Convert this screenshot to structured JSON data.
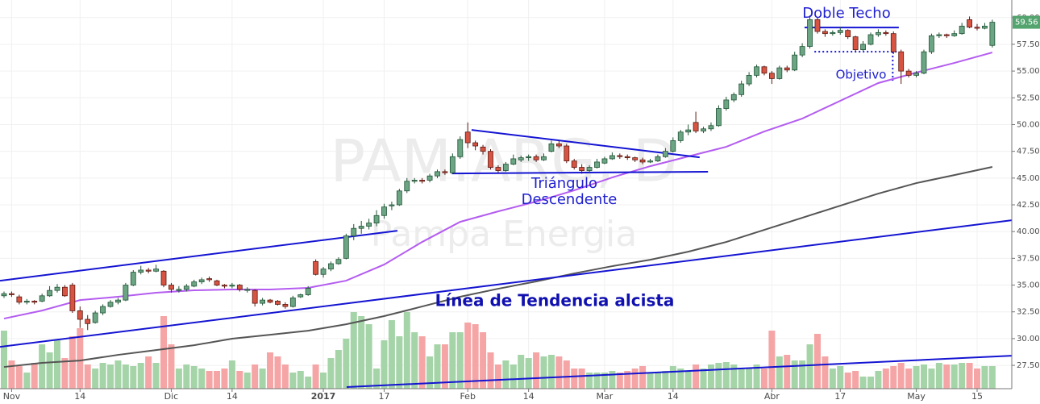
{
  "chart_data": {
    "type": "candlestick",
    "watermark": [
      "PAM:ARG, D",
      "Pampa Energia"
    ],
    "annotations": [
      "Doble Techo",
      "Objetivo",
      "Triángulo",
      "Descendente",
      "Línea de Tendencia alcista"
    ],
    "up_color": "#6ba583",
    "down_color": "#d75442",
    "grid": true,
    "xlim": [
      -0.53,
      132.56
    ],
    "ylim": [
      25.32,
      61.64
    ],
    "xticks": [
      {
        "value": 1,
        "label": "Nov"
      },
      {
        "value": 10,
        "label": "14"
      },
      {
        "value": 22,
        "label": "Dic"
      },
      {
        "value": 30,
        "label": "14"
      },
      {
        "value": 42,
        "label": "2017"
      },
      {
        "value": 50,
        "label": "17"
      },
      {
        "value": 61,
        "label": "Feb"
      },
      {
        "value": 69,
        "label": "14"
      },
      {
        "value": 79,
        "label": "Mar"
      },
      {
        "value": 88,
        "label": "14"
      },
      {
        "value": 101,
        "label": "Abr"
      },
      {
        "value": 110,
        "label": "17"
      },
      {
        "value": 120,
        "label": "May"
      },
      {
        "value": 128,
        "label": "15"
      }
    ],
    "yticks": [
      {
        "value": 27.5,
        "label": "27.50"
      },
      {
        "value": 30,
        "label": "30.00"
      },
      {
        "value": 32.5,
        "label": "32.50"
      },
      {
        "value": 35,
        "label": "35.00"
      },
      {
        "value": 37.5,
        "label": "37.50"
      },
      {
        "value": 40,
        "label": "40.00"
      },
      {
        "value": 42.5,
        "label": "42.50"
      },
      {
        "value": 45,
        "label": "45.00"
      },
      {
        "value": 47.5,
        "label": "47.50"
      },
      {
        "value": 50,
        "label": "50.00"
      },
      {
        "value": 52.5,
        "label": "52.50"
      },
      {
        "value": 55,
        "label": "55.00"
      },
      {
        "value": 57.5,
        "label": "57.50"
      },
      {
        "value": 60,
        "label": "60.00"
      }
    ],
    "last_price": {
      "value": 59.56,
      "color": "#53a46e"
    },
    "candles": [
      [
        34.0,
        34.4,
        33.8,
        34.2
      ],
      [
        34.2,
        34.4,
        33.9,
        34.1
      ],
      [
        33.9,
        34.1,
        33.2,
        33.4
      ],
      [
        33.4,
        33.7,
        33.2,
        33.5
      ],
      [
        33.5,
        33.6,
        33.2,
        33.4
      ],
      [
        33.5,
        34.2,
        33.4,
        34.0
      ],
      [
        34.0,
        34.9,
        33.9,
        34.5
      ],
      [
        34.5,
        35.1,
        34.3,
        34.8
      ],
      [
        34.8,
        35.0,
        33.9,
        34.0
      ],
      [
        35.0,
        35.2,
        32.4,
        32.6
      ],
      [
        32.6,
        33.0,
        31.0,
        31.8
      ],
      [
        31.8,
        32.2,
        30.8,
        31.4
      ],
      [
        31.5,
        32.6,
        31.4,
        32.4
      ],
      [
        32.4,
        33.2,
        32.2,
        33.0
      ],
      [
        33.0,
        33.6,
        32.9,
        33.4
      ],
      [
        33.4,
        33.8,
        33.2,
        33.6
      ],
      [
        33.6,
        35.2,
        33.5,
        35.0
      ],
      [
        35.0,
        36.4,
        34.9,
        36.2
      ],
      [
        36.2,
        36.8,
        36.0,
        36.4
      ],
      [
        36.4,
        36.6,
        36.1,
        36.3
      ],
      [
        36.3,
        36.9,
        36.2,
        36.5
      ],
      [
        36.3,
        36.4,
        34.8,
        35.0
      ],
      [
        35.0,
        35.2,
        34.3,
        34.6
      ],
      [
        34.5,
        34.9,
        34.3,
        34.6
      ],
      [
        34.6,
        35.1,
        34.4,
        34.9
      ],
      [
        34.9,
        35.5,
        34.8,
        35.3
      ],
      [
        35.3,
        35.7,
        35.1,
        35.5
      ],
      [
        35.6,
        35.8,
        35.3,
        35.5
      ],
      [
        35.4,
        35.5,
        34.9,
        35.0
      ],
      [
        35.0,
        35.1,
        34.7,
        34.9
      ],
      [
        34.9,
        35.2,
        34.7,
        35.0
      ],
      [
        35.0,
        35.1,
        34.4,
        34.6
      ],
      [
        34.5,
        34.8,
        34.3,
        34.6
      ],
      [
        34.5,
        34.6,
        33.0,
        33.3
      ],
      [
        33.3,
        33.8,
        33.1,
        33.6
      ],
      [
        33.6,
        33.7,
        33.3,
        33.4
      ],
      [
        33.5,
        33.6,
        33.1,
        33.2
      ],
      [
        33.2,
        33.4,
        32.8,
        33.0
      ],
      [
        33.0,
        34.0,
        32.9,
        33.8
      ],
      [
        33.9,
        34.2,
        33.8,
        34.1
      ],
      [
        34.1,
        34.9,
        34.0,
        34.7
      ],
      [
        37.2,
        37.4,
        35.9,
        36.0
      ],
      [
        36.0,
        36.7,
        35.7,
        36.5
      ],
      [
        36.5,
        37.2,
        36.3,
        37.0
      ],
      [
        37.0,
        37.6,
        36.9,
        37.4
      ],
      [
        37.5,
        39.8,
        37.4,
        39.6
      ],
      [
        39.6,
        40.7,
        39.2,
        40.3
      ],
      [
        40.3,
        41.0,
        39.8,
        40.5
      ],
      [
        40.5,
        41.2,
        40.2,
        40.8
      ],
      [
        40.8,
        42.0,
        40.5,
        41.5
      ],
      [
        41.5,
        42.6,
        41.2,
        42.3
      ],
      [
        42.4,
        42.8,
        42.0,
        42.5
      ],
      [
        42.5,
        44.0,
        42.4,
        43.8
      ],
      [
        43.8,
        45.0,
        43.6,
        44.7
      ],
      [
        44.7,
        45.0,
        44.5,
        44.8
      ],
      [
        44.8,
        45.0,
        44.5,
        44.7
      ],
      [
        44.8,
        45.4,
        44.6,
        45.2
      ],
      [
        45.2,
        45.8,
        45.0,
        45.6
      ],
      [
        45.6,
        45.8,
        45.3,
        45.5
      ],
      [
        45.5,
        47.3,
        45.4,
        47.0
      ],
      [
        47.0,
        48.9,
        46.8,
        48.6
      ],
      [
        49.3,
        50.2,
        47.8,
        48.3
      ],
      [
        48.3,
        48.5,
        47.6,
        48.0
      ],
      [
        47.9,
        48.1,
        47.2,
        47.5
      ],
      [
        47.5,
        47.7,
        45.8,
        46.0
      ],
      [
        46.0,
        46.2,
        45.5,
        45.7
      ],
      [
        45.7,
        46.5,
        45.6,
        46.3
      ],
      [
        46.3,
        47.2,
        46.2,
        46.8
      ],
      [
        46.7,
        47.1,
        46.5,
        46.9
      ],
      [
        46.9,
        47.2,
        46.6,
        47.0
      ],
      [
        47.0,
        47.2,
        46.5,
        46.7
      ],
      [
        46.7,
        47.3,
        46.6,
        47.0
      ],
      [
        47.5,
        48.5,
        47.4,
        48.2
      ],
      [
        48.2,
        48.5,
        47.8,
        48.0
      ],
      [
        48.0,
        48.2,
        46.4,
        46.6
      ],
      [
        46.6,
        46.8,
        45.8,
        46.0
      ],
      [
        46.0,
        46.3,
        45.4,
        45.7
      ],
      [
        45.7,
        46.2,
        45.5,
        46.0
      ],
      [
        46.0,
        46.8,
        45.9,
        46.5
      ],
      [
        46.4,
        47.0,
        46.3,
        46.8
      ],
      [
        46.8,
        47.4,
        46.7,
        47.1
      ],
      [
        47.1,
        47.3,
        46.8,
        47.0
      ],
      [
        47.0,
        47.2,
        46.7,
        46.9
      ],
      [
        46.9,
        47.0,
        46.5,
        46.7
      ],
      [
        46.7,
        46.9,
        46.3,
        46.5
      ],
      [
        46.5,
        46.8,
        46.4,
        46.6
      ],
      [
        46.6,
        47.2,
        46.5,
        47.0
      ],
      [
        47.0,
        47.8,
        46.9,
        47.5
      ],
      [
        47.5,
        48.8,
        47.4,
        48.5
      ],
      [
        48.5,
        49.5,
        48.3,
        49.3
      ],
      [
        49.3,
        50.0,
        49.0,
        49.5
      ],
      [
        50.2,
        51.2,
        49.2,
        49.4
      ],
      [
        49.4,
        49.8,
        49.2,
        49.6
      ],
      [
        49.6,
        50.2,
        49.4,
        49.9
      ],
      [
        49.9,
        51.8,
        49.8,
        51.5
      ],
      [
        51.5,
        52.6,
        51.3,
        52.3
      ],
      [
        52.3,
        53.0,
        52.1,
        52.8
      ],
      [
        52.8,
        54.1,
        52.6,
        53.8
      ],
      [
        53.8,
        54.9,
        53.6,
        54.6
      ],
      [
        54.6,
        55.6,
        54.4,
        55.4
      ],
      [
        55.4,
        55.5,
        54.6,
        54.8
      ],
      [
        54.8,
        55.0,
        53.8,
        54.3
      ],
      [
        54.3,
        55.5,
        54.2,
        55.3
      ],
      [
        55.3,
        55.5,
        54.9,
        55.1
      ],
      [
        55.1,
        56.8,
        55.0,
        56.5
      ],
      [
        56.5,
        57.6,
        56.3,
        57.3
      ],
      [
        57.3,
        60.2,
        57.1,
        59.8
      ],
      [
        59.8,
        60.0,
        58.5,
        58.7
      ],
      [
        58.7,
        58.9,
        58.2,
        58.5
      ],
      [
        58.5,
        58.8,
        58.3,
        58.6
      ],
      [
        58.6,
        59.1,
        58.4,
        58.8
      ],
      [
        58.8,
        58.9,
        58.0,
        58.2
      ],
      [
        58.2,
        58.3,
        56.8,
        57.0
      ],
      [
        57.0,
        57.8,
        56.9,
        57.5
      ],
      [
        57.5,
        58.6,
        57.4,
        58.4
      ],
      [
        58.4,
        58.9,
        58.2,
        58.6
      ],
      [
        58.6,
        58.8,
        58.3,
        58.5
      ],
      [
        58.5,
        58.7,
        56.6,
        56.8
      ],
      [
        56.8,
        57.0,
        53.8,
        55.0
      ],
      [
        55.0,
        55.2,
        54.4,
        54.6
      ],
      [
        54.6,
        55.0,
        54.4,
        54.8
      ],
      [
        54.8,
        57.0,
        54.7,
        56.8
      ],
      [
        56.8,
        58.5,
        56.6,
        58.3
      ],
      [
        58.3,
        58.6,
        58.1,
        58.4
      ],
      [
        58.4,
        58.5,
        58.1,
        58.3
      ],
      [
        58.3,
        58.8,
        58.2,
        58.5
      ],
      [
        58.5,
        59.5,
        58.4,
        59.2
      ],
      [
        59.8,
        60.1,
        59.0,
        59.1
      ],
      [
        59.1,
        59.4,
        58.8,
        59.0
      ],
      [
        59.0,
        59.5,
        58.9,
        59.2
      ],
      [
        57.4,
        59.8,
        57.2,
        59.56
      ]
    ],
    "volume": {
      "up_color": "#a5d4a8",
      "down_color": "#f5a5a5",
      "lim": [
        0,
        100
      ],
      "values": [
        72,
        35,
        28,
        20,
        32,
        55,
        45,
        60,
        38,
        65,
        75,
        30,
        25,
        32,
        30,
        35,
        30,
        28,
        32,
        40,
        32,
        90,
        55,
        25,
        30,
        28,
        25,
        22,
        22,
        25,
        35,
        22,
        20,
        30,
        25,
        45,
        40,
        30,
        20,
        22,
        15,
        30,
        20,
        38,
        48,
        62,
        95,
        90,
        80,
        25,
        60,
        85,
        65,
        95,
        70,
        65,
        40,
        55,
        55,
        70,
        70,
        82,
        80,
        70,
        45,
        30,
        35,
        30,
        42,
        38,
        45,
        40,
        42,
        40,
        35,
        25,
        25,
        20,
        20,
        20,
        22,
        20,
        22,
        25,
        28,
        20,
        20,
        22,
        28,
        25,
        22,
        30,
        25,
        30,
        32,
        33,
        30,
        25,
        25,
        30,
        25,
        72,
        40,
        42,
        35,
        35,
        55,
        68,
        40,
        25,
        28,
        20,
        22,
        15,
        15,
        22,
        25,
        28,
        32,
        25,
        28,
        30,
        25,
        32,
        30,
        30,
        32,
        32,
        25,
        28,
        28
      ]
    },
    "moving_averages": [
      {
        "color": "#b45cf0",
        "x": [
          0,
          5,
          10,
          15,
          20,
          25,
          30,
          35,
          40,
          45,
          50,
          55,
          60,
          65,
          70,
          75,
          80,
          85,
          90,
          95,
          100,
          105,
          110,
          115,
          120,
          125,
          130
        ],
        "values": [
          31.87,
          32.62,
          33.6,
          33.91,
          34.29,
          34.51,
          34.59,
          34.59,
          34.74,
          35.41,
          36.92,
          39.03,
          40.91,
          41.89,
          42.8,
          43.85,
          45.06,
          46.11,
          47.02,
          47.92,
          49.35,
          50.56,
          52.22,
          53.88,
          54.86,
          55.76,
          56.74
        ]
      },
      {
        "color": "#555555",
        "x": [
          0,
          5,
          10,
          15,
          20,
          25,
          30,
          35,
          40,
          45,
          50,
          55,
          60,
          65,
          70,
          75,
          80,
          85,
          90,
          95,
          100,
          105,
          110,
          115,
          120,
          125,
          130
        ],
        "values": [
          27.35,
          27.73,
          27.95,
          28.48,
          28.93,
          29.38,
          29.99,
          30.36,
          30.74,
          31.34,
          32.1,
          33.0,
          33.91,
          34.66,
          35.34,
          36.09,
          36.77,
          37.37,
          38.12,
          39.03,
          40.16,
          41.29,
          42.42,
          43.55,
          44.53,
          45.28,
          46.04
        ]
      }
    ],
    "lines": [
      {
        "color": "#1414d2",
        "x": [
          -0.53,
          51.75
        ],
        "values": [
          35.41,
          40.08
        ]
      },
      {
        "color": "#1414d2",
        "x": [
          -0.53,
          132.56
        ],
        "values": [
          29.23,
          41.06
        ]
      },
      {
        "color": "#1414d2",
        "x": [
          61.5,
          91.5
        ],
        "values": [
          49.5,
          46.94
        ]
      },
      {
        "color": "#1414d2",
        "x": [
          58.9,
          92.6
        ],
        "values": [
          45.43,
          45.59
        ]
      },
      {
        "color": "#1414d2",
        "x": [
          105.3,
          117.7
        ],
        "values": [
          59.07,
          59.07
        ]
      },
      {
        "color": "#1414d2",
        "x": [
          106.6,
          117.7
        ],
        "values": [
          56.81,
          56.81
        ],
        "style": "dotted"
      },
      {
        "color": "#1414d2",
        "x": [
          116.9,
          116.9
        ],
        "values": [
          56.81,
          54.1
        ],
        "style": "dotted"
      },
      {
        "color": "#1414d2",
        "x": [
          45.07,
          132.56
        ],
        "values": [
          25.47,
          28.4
        ]
      }
    ]
  }
}
